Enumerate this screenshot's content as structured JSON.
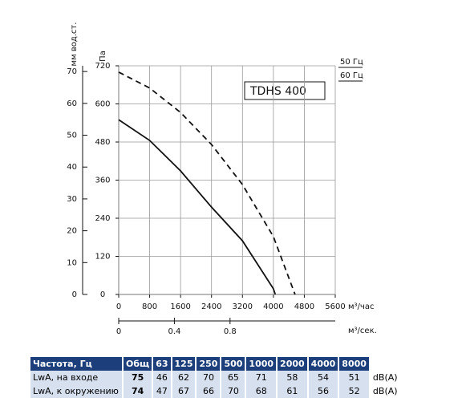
{
  "chart_data": {
    "type": "line",
    "y_label": "Па",
    "y2_label": "мм вод.ст.",
    "x_label": "м³/час",
    "x2_label": "м³/сек.",
    "annotation": "TDHS 400",
    "series": [
      {
        "name": "50 Гц",
        "color": "#111111",
        "dash": false,
        "x": [
          0,
          800,
          1600,
          2400,
          3200,
          4000,
          4050
        ],
        "values": [
          550,
          485,
          389,
          275,
          169,
          18,
          0
        ]
      },
      {
        "name": "60 Гц",
        "color": "#111111",
        "dash": true,
        "x": [
          0,
          800,
          1600,
          2400,
          3200,
          4000,
          4560
        ],
        "values": [
          700,
          650,
          573,
          472,
          346,
          182,
          0
        ]
      }
    ],
    "xlim": [
      0,
      5600
    ],
    "xticks": [
      0,
      800,
      1600,
      2400,
      3200,
      4000,
      4800,
      5600
    ],
    "ylim": [
      0,
      720
    ],
    "yticks": [
      0,
      120,
      240,
      360,
      480,
      600,
      720
    ],
    "y2lim": [
      0,
      71.8
    ],
    "y2ticks": [
      0,
      10,
      20,
      30,
      40,
      50,
      60,
      70
    ],
    "x2lim": [
      0,
      1.556
    ],
    "x2ticks": [
      0,
      0.4,
      0.8
    ],
    "grid": true
  },
  "table": {
    "header": [
      "Частота, Гц",
      "Общ",
      "63",
      "125",
      "250",
      "500",
      "1000",
      "2000",
      "4000",
      "8000"
    ],
    "rows": [
      [
        "LwA, на входе",
        "75",
        "46",
        "62",
        "70",
        "65",
        "71",
        "58",
        "54",
        "51",
        "dB(A)"
      ],
      [
        "LwA, к окружению",
        "74",
        "47",
        "67",
        "66",
        "70",
        "68",
        "61",
        "56",
        "52",
        "dB(A)"
      ]
    ]
  }
}
